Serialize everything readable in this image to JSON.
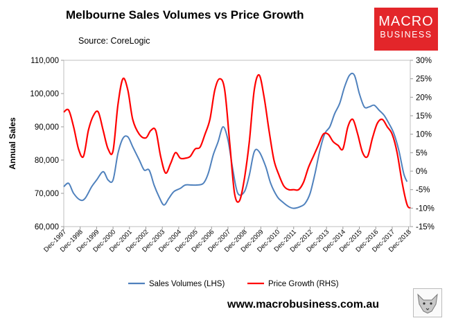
{
  "chart_data": {
    "type": "line",
    "title": "Melbourne Sales Volumes vs Price Growth",
    "source": "Source: CoreLogic",
    "ylabel_left": "Annual Sales",
    "ylim_left": [
      60000,
      110000
    ],
    "ylim_right": [
      -15,
      30
    ],
    "yticks_left": [
      "60,000",
      "70,000",
      "80,000",
      "90,000",
      "100,000",
      "110,000"
    ],
    "yticks_right": [
      "-15%",
      "-10%",
      "-5%",
      "0%",
      "5%",
      "10%",
      "15%",
      "20%",
      "25%",
      "30%"
    ],
    "xticks": [
      "Dec-1997",
      "Dec-1998",
      "Dec-1999",
      "Dec-2000",
      "Dec-2001",
      "Dec-2002",
      "Dec-2003",
      "Dec-2004",
      "Dec-2005",
      "Dec-2006",
      "Dec-2007",
      "Dec-2008",
      "Dec-2009",
      "Dec-2010",
      "Dec-2011",
      "Dec-2012",
      "Dec-2013",
      "Dec-2014",
      "Dec-2015",
      "Dec-2016",
      "Dec-2017",
      "Dec-2018"
    ],
    "x_range": [
      1997.9,
      2019.0
    ],
    "series": [
      {
        "name": "Sales Volumes (LHS)",
        "axis": "left",
        "color": "#4f81bd",
        "x": [
          1997.9,
          1998.2,
          1998.5,
          1998.9,
          1999.2,
          1999.6,
          1999.9,
          2000.3,
          2000.6,
          2000.9,
          2001.2,
          2001.5,
          2001.8,
          2002.1,
          2002.5,
          2002.8,
          2003.1,
          2003.4,
          2003.7,
          2004.0,
          2004.3,
          2004.6,
          2005.0,
          2005.3,
          2005.7,
          2006.0,
          2006.4,
          2006.7,
          2007.0,
          2007.3,
          2007.6,
          2007.9,
          2008.2,
          2008.5,
          2008.9,
          2009.2,
          2009.5,
          2009.8,
          2010.2,
          2010.5,
          2010.9,
          2011.2,
          2011.6,
          2011.9,
          2012.3,
          2012.6,
          2012.9,
          2013.2,
          2013.5,
          2013.8,
          2014.1,
          2014.4,
          2014.7,
          2015.0,
          2015.3,
          2015.6,
          2015.9,
          2016.2,
          2016.5,
          2016.8,
          2017.1,
          2017.4,
          2017.7,
          2018.0,
          2018.3,
          2018.6,
          2018.8
        ],
        "values": [
          72000,
          73000,
          70000,
          68000,
          68500,
          72000,
          74000,
          76500,
          74000,
          74000,
          82000,
          86500,
          87000,
          84000,
          80000,
          77000,
          77000,
          72500,
          69000,
          66500,
          68500,
          70500,
          71500,
          72500,
          72500,
          72500,
          73000,
          76000,
          81500,
          85500,
          90000,
          86000,
          77000,
          70000,
          70500,
          75500,
          82500,
          82500,
          78000,
          73000,
          69000,
          67500,
          66000,
          65500,
          66000,
          67000,
          70000,
          76000,
          83000,
          88000,
          90000,
          94000,
          97000,
          102000,
          105500,
          105500,
          100000,
          96000,
          96000,
          96500,
          95000,
          93500,
          91000,
          88000,
          83000,
          76000,
          73500
        ]
      },
      {
        "name": "Price Growth (RHS)",
        "axis": "right",
        "color": "#ff0000",
        "x": [
          1997.9,
          1998.2,
          1998.5,
          1998.8,
          1999.1,
          1999.4,
          1999.7,
          2000.0,
          2000.3,
          2000.6,
          2000.9,
          2001.2,
          2001.5,
          2001.8,
          2002.1,
          2002.5,
          2002.9,
          2003.2,
          2003.5,
          2003.8,
          2004.1,
          2004.4,
          2004.7,
          2005.0,
          2005.3,
          2005.6,
          2005.9,
          2006.2,
          2006.5,
          2006.8,
          2007.1,
          2007.4,
          2007.7,
          2008.0,
          2008.3,
          2008.6,
          2008.9,
          2009.2,
          2009.5,
          2009.8,
          2010.1,
          2010.4,
          2010.7,
          2011.0,
          2011.3,
          2011.6,
          2011.9,
          2012.2,
          2012.5,
          2012.8,
          2013.1,
          2013.4,
          2013.7,
          2014.0,
          2014.3,
          2014.6,
          2014.9,
          2015.2,
          2015.5,
          2015.8,
          2016.1,
          2016.4,
          2016.7,
          2017.0,
          2017.3,
          2017.6,
          2017.9,
          2018.2,
          2018.5,
          2018.8,
          2019.0
        ],
        "values": [
          16,
          16.5,
          12,
          6,
          4,
          11,
          15,
          16,
          11,
          6,
          5.5,
          18,
          25,
          22,
          14,
          10,
          9,
          11,
          11,
          4,
          -0.5,
          2,
          5,
          3.5,
          3.5,
          4,
          6,
          6.5,
          10,
          14,
          22,
          25,
          22,
          8,
          -6,
          -8,
          -2,
          8,
          22,
          26,
          20,
          11,
          3,
          -1,
          -4,
          -5,
          -5,
          -5,
          -3,
          1,
          4,
          7,
          10,
          10,
          8,
          7,
          6,
          12,
          14,
          10,
          5,
          4,
          9,
          13,
          14,
          12,
          10,
          5,
          -3,
          -9,
          -10
        ]
      }
    ],
    "legend": {
      "position": "bottom",
      "entries": [
        "Sales Volumes (LHS)",
        "Price Growth (RHS)"
      ]
    }
  },
  "branding": {
    "logo_line1": "MACRO",
    "logo_line2": "BUSINESS",
    "website": "www.macrobusiness.com.au",
    "logo_color": "#e3262a"
  }
}
